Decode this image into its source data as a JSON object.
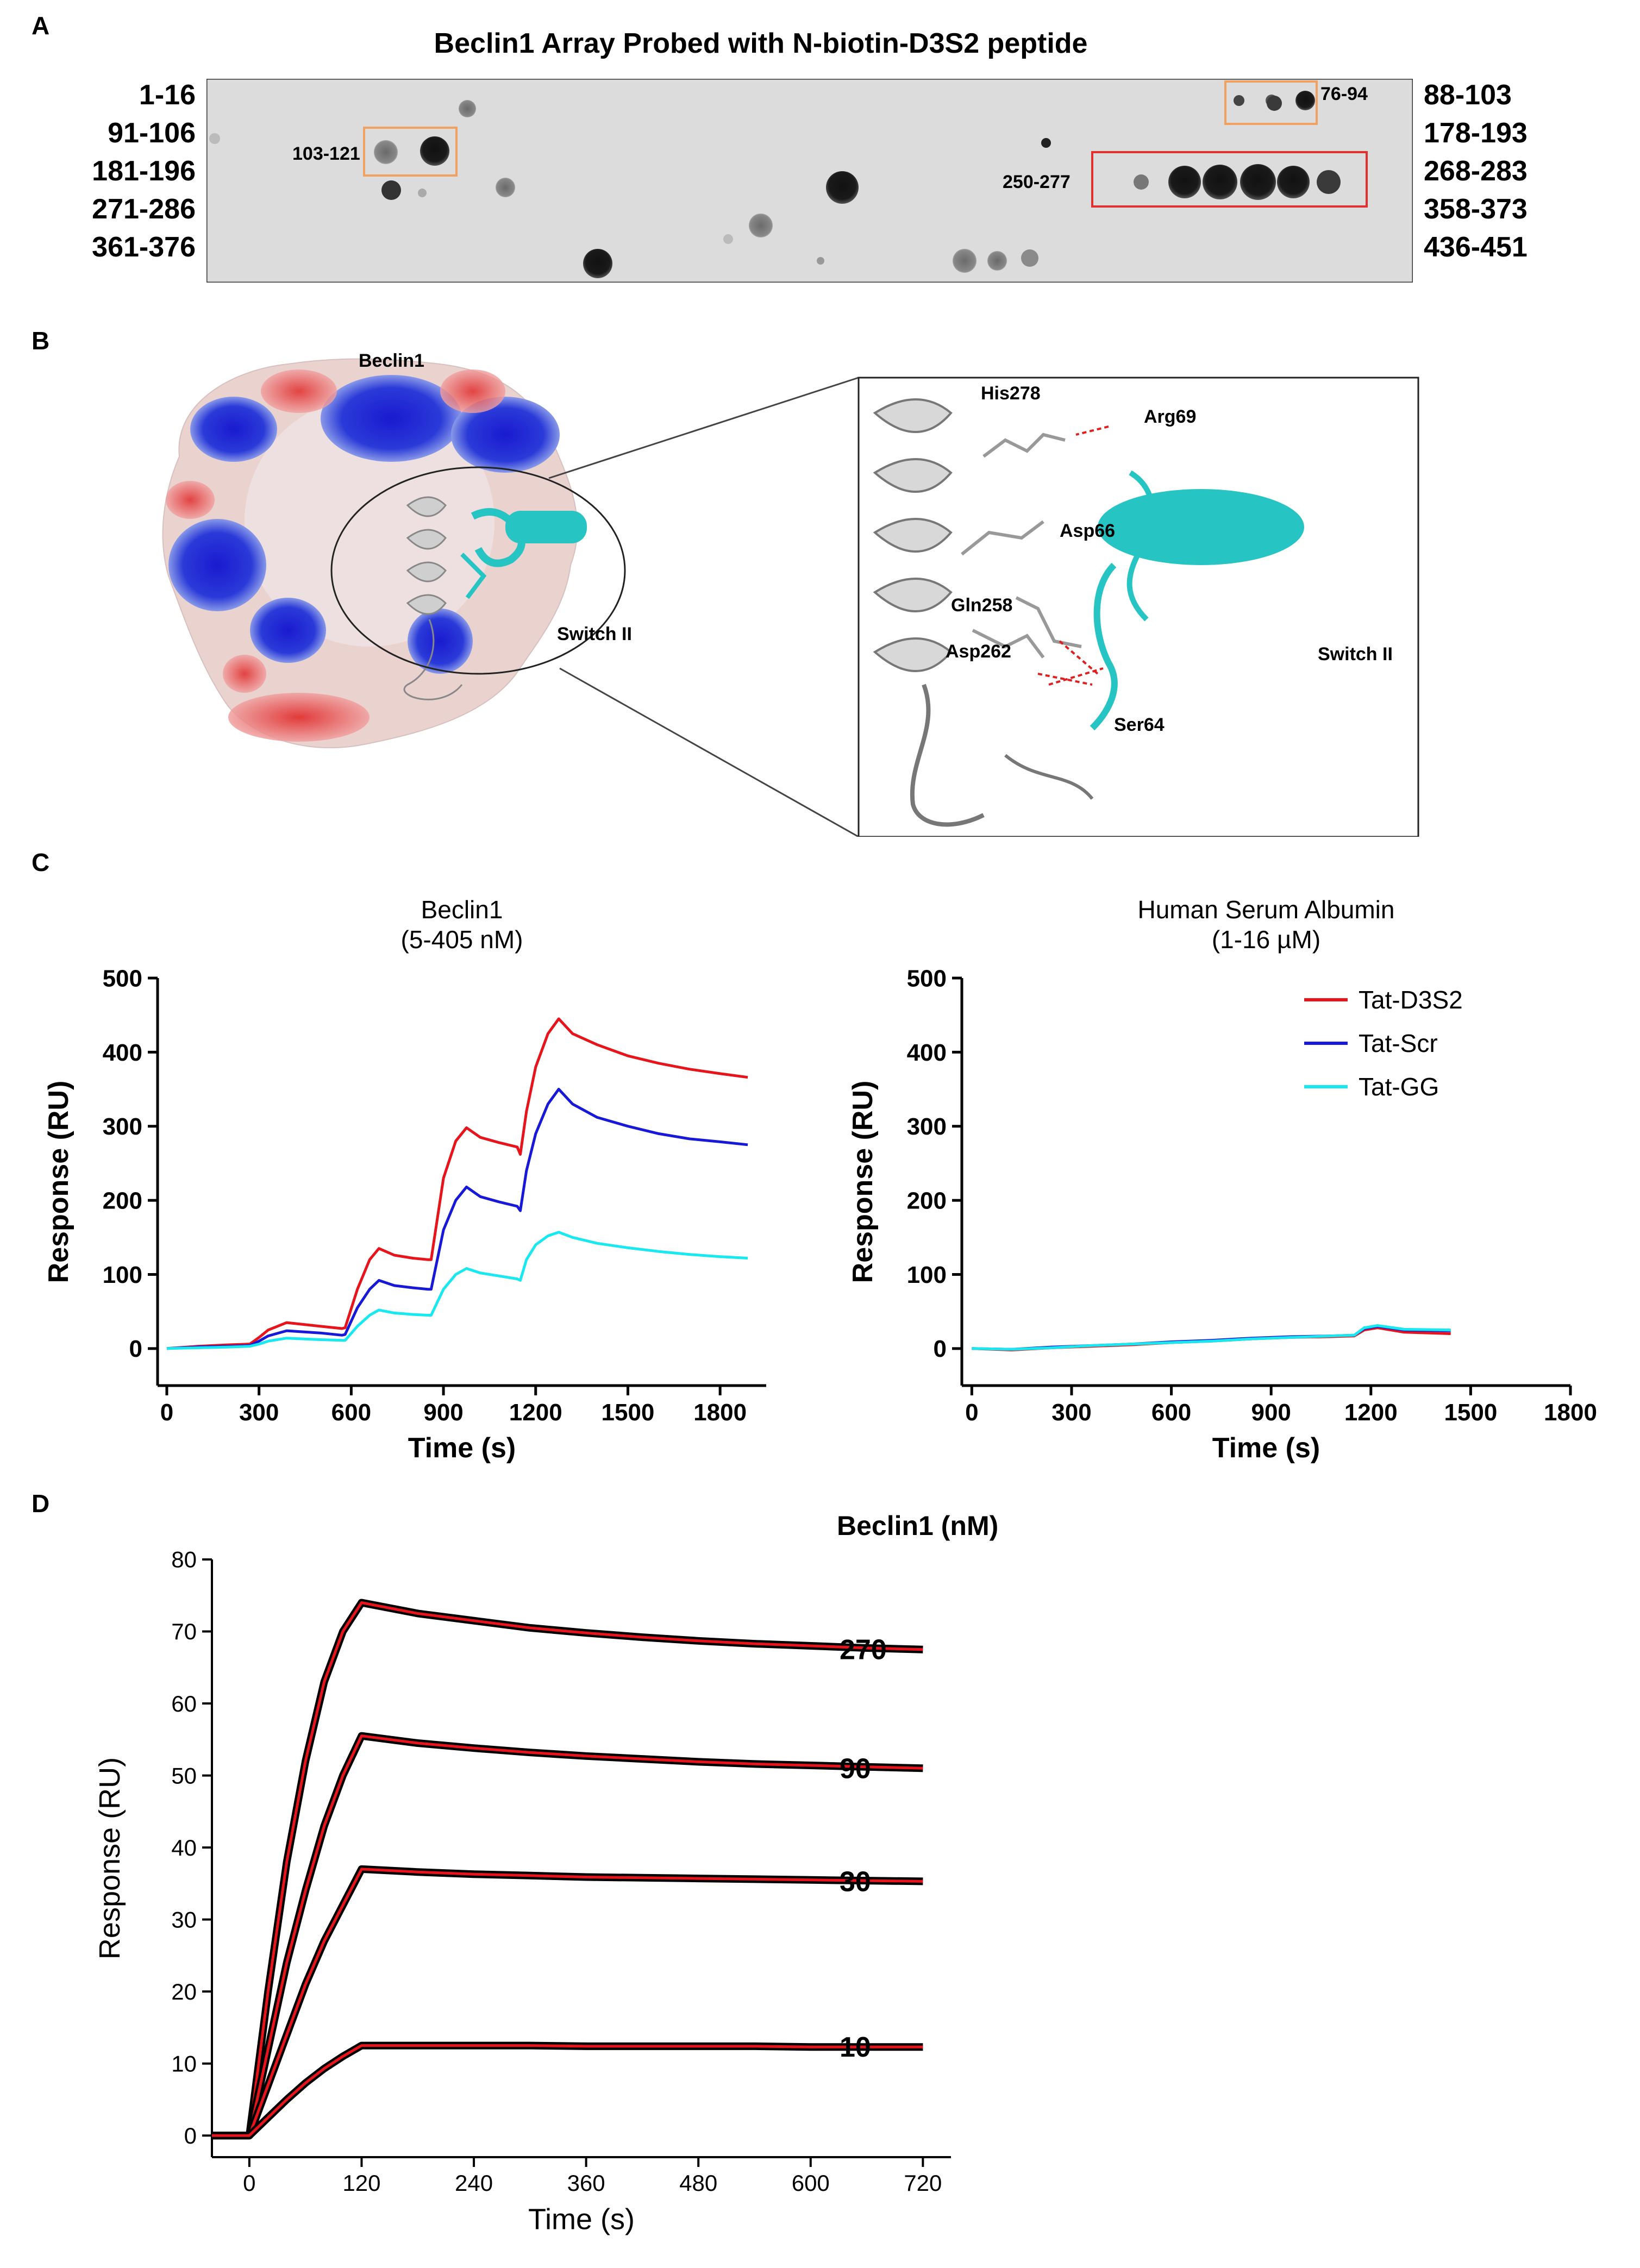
{
  "panel_letters": {
    "a": "A",
    "b": "B",
    "c": "C",
    "d": "D"
  },
  "panel_a": {
    "title": "Beclin1 Array Probed with N-biotin-D3S2 peptide",
    "left_labels": [
      "1-16",
      "91-106",
      "181-196",
      "271-286",
      "361-376"
    ],
    "right_labels": [
      "88-103",
      "178-193",
      "268-283",
      "358-373",
      "436-451"
    ],
    "box_labels": {
      "orange_left": "103-121",
      "orange_right": "76-94",
      "red": "250-277"
    },
    "colors": {
      "orange_box": "#f0a060",
      "red_box": "#e03030",
      "membrane": "#d9d9d9"
    }
  },
  "panel_b": {
    "surface_label": "Beclin1",
    "switch_label_small": "Switch II",
    "inset_labels": {
      "his278": "His278",
      "arg69": "Arg69",
      "asp66": "Asp66",
      "gln258": "Gln258",
      "asp262": "Asp262",
      "ser64": "Ser64",
      "switch2": "Switch II"
    },
    "colors": {
      "positive": "#1f2fd6",
      "negative": "#d93030",
      "peptide": "#27c4c4",
      "helix": "#c8c8c8"
    }
  },
  "chart_data": [
    {
      "type": "line",
      "title": "Beclin1",
      "subtitle": "(5-405 nM)",
      "xlabel": "Time (s)",
      "ylabel": "Response (RU)",
      "xlim": [
        -30,
        1950
      ],
      "ylim": [
        -50,
        500
      ],
      "xticks": [
        0,
        300,
        600,
        900,
        1200,
        1500,
        1800
      ],
      "yticks": [
        0,
        100,
        200,
        300,
        400,
        500
      ],
      "series": [
        {
          "name": "Tat-D3S2",
          "color": "#e8141c",
          "x": [
            0,
            100,
            200,
            270,
            300,
            330,
            390,
            500,
            570,
            580,
            620,
            660,
            690,
            740,
            800,
            850,
            860,
            900,
            940,
            975,
            1020,
            1080,
            1140,
            1150,
            1170,
            1200,
            1240,
            1275,
            1320,
            1400,
            1500,
            1600,
            1700,
            1800,
            1890
          ],
          "y": [
            0,
            3,
            5,
            6,
            15,
            25,
            35,
            30,
            27,
            28,
            80,
            120,
            135,
            126,
            122,
            120,
            120,
            230,
            280,
            298,
            285,
            278,
            272,
            262,
            320,
            380,
            425,
            445,
            425,
            410,
            395,
            385,
            377,
            371,
            366
          ]
        },
        {
          "name": "Tat-Scr",
          "color": "#1818d8",
          "x": [
            0,
            100,
            200,
            270,
            300,
            330,
            390,
            500,
            570,
            580,
            620,
            660,
            690,
            740,
            800,
            850,
            860,
            900,
            940,
            975,
            1020,
            1080,
            1140,
            1150,
            1170,
            1200,
            1240,
            1275,
            1320,
            1400,
            1500,
            1600,
            1700,
            1800,
            1890
          ],
          "y": [
            0,
            2,
            3,
            4,
            10,
            17,
            24,
            21,
            18,
            19,
            55,
            80,
            92,
            85,
            82,
            80,
            80,
            160,
            200,
            218,
            205,
            198,
            192,
            186,
            240,
            290,
            330,
            350,
            330,
            312,
            300,
            290,
            283,
            279,
            275
          ]
        },
        {
          "name": "Tat-GG",
          "color": "#18e8f0",
          "x": [
            0,
            100,
            200,
            270,
            300,
            330,
            390,
            500,
            570,
            580,
            620,
            660,
            690,
            740,
            800,
            850,
            860,
            900,
            940,
            975,
            1020,
            1080,
            1140,
            1150,
            1170,
            1200,
            1240,
            1275,
            1320,
            1400,
            1500,
            1600,
            1700,
            1800,
            1890
          ],
          "y": [
            0,
            1,
            2,
            3,
            6,
            10,
            14,
            12,
            11,
            11,
            30,
            45,
            52,
            48,
            46,
            45,
            45,
            80,
            100,
            108,
            102,
            98,
            94,
            92,
            120,
            140,
            152,
            157,
            150,
            142,
            136,
            131,
            127,
            124,
            122
          ]
        }
      ]
    },
    {
      "type": "line",
      "title": "Human Serum Albumin",
      "subtitle": "(1-16 µM)",
      "xlabel": "Time (s)",
      "ylabel": "Response (RU)",
      "xlim": [
        -30,
        1800
      ],
      "ylim": [
        -50,
        500
      ],
      "xticks": [
        0,
        300,
        600,
        900,
        1200,
        1500,
        1800
      ],
      "yticks": [
        0,
        100,
        200,
        300,
        400,
        500
      ],
      "legend": "top-right",
      "series": [
        {
          "name": "Tat-D3S2",
          "color": "#e8141c",
          "x": [
            0,
            120,
            240,
            360,
            480,
            600,
            720,
            840,
            960,
            1080,
            1150,
            1180,
            1220,
            1300,
            1440
          ],
          "y": [
            0,
            -2,
            1,
            3,
            5,
            8,
            10,
            13,
            15,
            16,
            17,
            25,
            28,
            22,
            20
          ]
        },
        {
          "name": "Tat-Scr",
          "color": "#1818d8",
          "x": [
            0,
            120,
            240,
            360,
            480,
            600,
            720,
            840,
            960,
            1080,
            1150,
            1180,
            1220,
            1300,
            1440
          ],
          "y": [
            0,
            -1,
            2,
            4,
            6,
            9,
            11,
            14,
            16,
            17,
            18,
            27,
            30,
            25,
            24
          ]
        },
        {
          "name": "Tat-GG",
          "color": "#18e8f0",
          "x": [
            0,
            120,
            240,
            360,
            480,
            600,
            720,
            840,
            960,
            1080,
            1150,
            1180,
            1220,
            1300,
            1440
          ],
          "y": [
            0,
            -1,
            1,
            4,
            6,
            8,
            10,
            13,
            15,
            17,
            18,
            28,
            31,
            26,
            25
          ]
        }
      ]
    },
    {
      "type": "line",
      "xlabel": "Time (s)",
      "ylabel": "Response (RU)",
      "legend_title": "Beclin1 (nM)",
      "xlim": [
        -40,
        750
      ],
      "ylim": [
        -3,
        80
      ],
      "xticks": [
        0,
        120,
        240,
        360,
        480,
        600,
        720
      ],
      "yticks": [
        0,
        10,
        20,
        30,
        40,
        50,
        60,
        70,
        80
      ],
      "series": [
        {
          "name": "270",
          "data_color": "#000000",
          "fit_color": "#e8141c",
          "x": [
            -40,
            0,
            20,
            40,
            60,
            80,
            100,
            120,
            180,
            240,
            300,
            360,
            420,
            480,
            540,
            600,
            660,
            720
          ],
          "y": [
            0,
            0,
            20,
            38,
            52,
            63,
            70,
            74,
            72.5,
            71.5,
            70.5,
            69.8,
            69.2,
            68.7,
            68.3,
            68,
            67.7,
            67.5
          ]
        },
        {
          "name": "90",
          "data_color": "#000000",
          "fit_color": "#e8141c",
          "x": [
            -40,
            0,
            20,
            40,
            60,
            80,
            100,
            120,
            180,
            240,
            300,
            360,
            420,
            480,
            540,
            600,
            660,
            720
          ],
          "y": [
            0,
            0,
            12,
            24,
            34,
            43,
            50,
            55.5,
            54.5,
            53.8,
            53.2,
            52.7,
            52.3,
            51.9,
            51.6,
            51.4,
            51.2,
            51
          ]
        },
        {
          "name": "30",
          "data_color": "#000000",
          "fit_color": "#e8141c",
          "x": [
            -40,
            0,
            20,
            40,
            60,
            80,
            100,
            120,
            180,
            240,
            300,
            360,
            420,
            480,
            540,
            600,
            660,
            720
          ],
          "y": [
            0,
            0,
            7,
            14,
            21,
            27,
            32,
            37,
            36.6,
            36.3,
            36.1,
            35.9,
            35.8,
            35.7,
            35.6,
            35.5,
            35.4,
            35.3
          ]
        },
        {
          "name": "10",
          "data_color": "#000000",
          "fit_color": "#e8141c",
          "x": [
            -40,
            0,
            20,
            40,
            60,
            80,
            100,
            120,
            180,
            240,
            300,
            360,
            420,
            480,
            540,
            600,
            660,
            720
          ],
          "y": [
            0,
            0,
            2.5,
            5,
            7.3,
            9.3,
            11,
            12.5,
            12.5,
            12.5,
            12.5,
            12.4,
            12.4,
            12.4,
            12.4,
            12.3,
            12.3,
            12.3
          ]
        }
      ]
    }
  ]
}
